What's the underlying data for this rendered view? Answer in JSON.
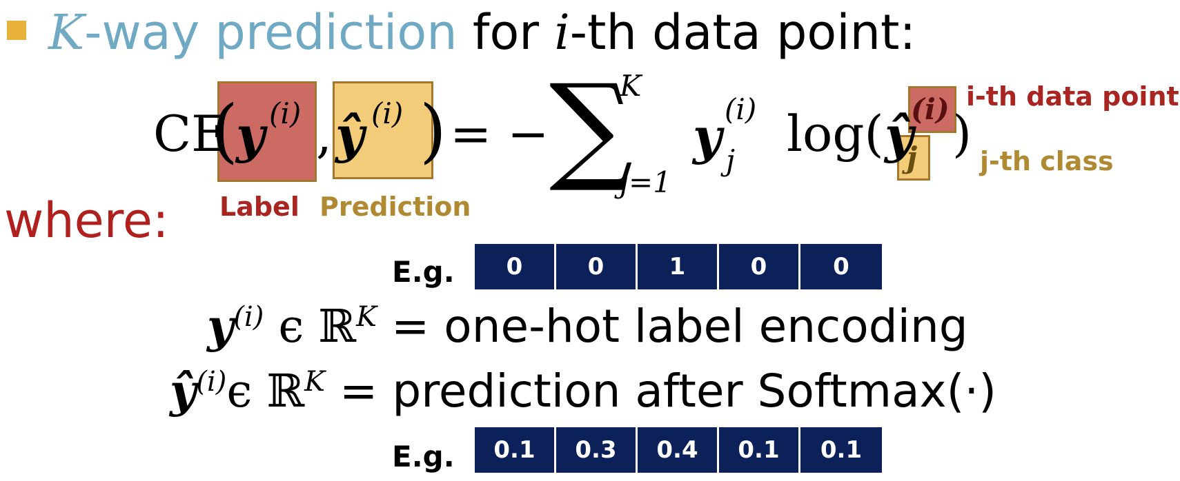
{
  "header": {
    "k": "K",
    "way": "-way prediction",
    "for": " for ",
    "i": "i",
    "rest": "-th data point:"
  },
  "formula": {
    "ce": "CE",
    "lparen": "(",
    "y": "y",
    "sup_i": "(i)",
    "comma": ",",
    "yhat": "ŷ",
    "rparen": ")",
    "eq_minus": "= −",
    "sigma": "∑",
    "sum_upper": "K",
    "sum_lower": "j=1",
    "y_j": "y",
    "sub_j": "j",
    "log": "log(",
    "yhat2": "ŷ",
    "sup_i2": "(i)",
    "sub_j2": "j",
    "close": ")",
    "label_tag": "Label",
    "prediction_tag": "Prediction",
    "ith_tag": "i-th data point",
    "jth_tag": "j-th class"
  },
  "where": "where:",
  "example_label": {
    "eg": "E.g.",
    "values": [
      "0",
      "0",
      "1",
      "0",
      "0"
    ]
  },
  "def_label": {
    "y": "y",
    "sup": "(i)",
    "in": "ϵ ℝ",
    "k": "K",
    "text": "= one-hot label encoding"
  },
  "def_pred": {
    "y": "ŷ",
    "sup": "(i)",
    "in": "ϵ ℝ",
    "k": "K",
    "text": "= prediction after Softmax(·)"
  },
  "example_pred": {
    "eg": "E.g.",
    "values": [
      "0.1",
      "0.3",
      "0.4",
      "0.1",
      "0.1"
    ]
  },
  "colors": {
    "bullet": "#e8b13c",
    "blue": "#6fa9c3",
    "red": "#b0201e",
    "box_red": "#cc6a64",
    "box_yellow": "#f2cc79",
    "cell": "#0c2159"
  }
}
